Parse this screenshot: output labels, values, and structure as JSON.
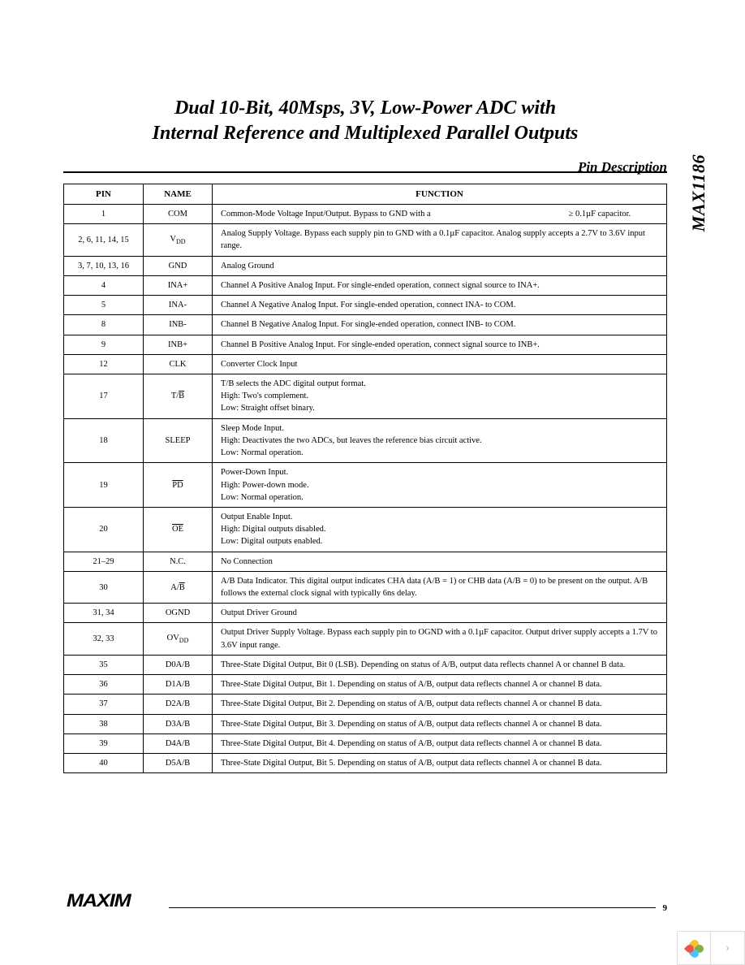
{
  "title_line1": "Dual 10-Bit, 40Msps, 3V, Low-Power ADC with",
  "title_line2": "Internal Reference and Multiplexed Parallel Outputs",
  "side_label": "MAX1186",
  "section_title": "Pin Description",
  "headers": {
    "pin": "PIN",
    "name": "NAME",
    "func": "FUNCTION"
  },
  "logo": "MAXIM",
  "page_number": "9",
  "rows": [
    {
      "pin": "1",
      "name": "COM",
      "func": "Common-Mode Voltage Input/Output. Bypass to GND with a",
      "extra": "≥ 0.1µF capacitor."
    },
    {
      "pin": "2, 6, 11, 14, 15",
      "name_html": "V<span class=\"sub\">DD</span>",
      "func": "Analog Supply Voltage. Bypass each supply pin to GND with a 0.1µF capacitor. Analog supply accepts a 2.7V to 3.6V input range."
    },
    {
      "pin": "3, 7, 10, 13, 16",
      "name": "GND",
      "func": "Analog Ground"
    },
    {
      "pin": "4",
      "name": "INA+",
      "func": "Channel A Positive Analog Input. For single-ended operation, connect signal source to INA+."
    },
    {
      "pin": "5",
      "name": "INA-",
      "func": "Channel A Negative Analog Input. For single-ended operation, connect INA- to COM."
    },
    {
      "pin": "8",
      "name": "INB-",
      "func": "Channel B Negative Analog Input. For single-ended operation, connect INB- to COM."
    },
    {
      "pin": "9",
      "name": "INB+",
      "func": "Channel B Positive Analog Input. For single-ended operation, connect signal source to INB+."
    },
    {
      "pin": "12",
      "name": "CLK",
      "func": "Converter Clock Input"
    },
    {
      "pin": "17",
      "name_html": "T/<span class=\"ov\">B</span>",
      "func": "T/B selects the ADC digital output format.<br>High: Two's complement.<br>Low: Straight offset binary."
    },
    {
      "pin": "18",
      "name": "SLEEP",
      "func": "Sleep Mode Input.<br>High: Deactivates the two ADCs, but leaves the reference bias circuit active.<br>Low: Normal operation."
    },
    {
      "pin": "19",
      "name_html": "<span class=\"ov\">PD</span>",
      "func": "Power-Down Input.<br>High: Power-down mode.<br>Low: Normal operation."
    },
    {
      "pin": "20",
      "name_html": "<span class=\"ov\">OE</span>",
      "func": "Output Enable Input.<br>High: Digital outputs disabled.<br>Low: Digital outputs enabled."
    },
    {
      "pin": "21–29",
      "name": "N.C.",
      "func": "No Connection"
    },
    {
      "pin": "30",
      "name_html": "A/<span class=\"ov\">B</span>",
      "func": "A/B Data Indicator. This digital output indicates CHA data (A/B = 1) or CHB data (A/B = 0) to be present on the output. A/B follows the external clock signal with typically 6ns delay."
    },
    {
      "pin": "31, 34",
      "name": "OGND",
      "func": "Output Driver Ground"
    },
    {
      "pin": "32, 33",
      "name_html": "OV<span class=\"sub\">DD</span>",
      "func": "Output Driver Supply Voltage. Bypass each supply pin to OGND with a 0.1µF capacitor. Output driver supply accepts a 1.7V to 3.6V input range."
    },
    {
      "pin": "35",
      "name": "D0A/B",
      "func": "Three-State Digital Output, Bit 0 (LSB). Depending on status of A/B, output data reflects channel A or channel B data."
    },
    {
      "pin": "36",
      "name": "D1A/B",
      "func": "Three-State Digital Output, Bit 1. Depending on status of A/B, output data reflects channel A or channel B data."
    },
    {
      "pin": "37",
      "name": "D2A/B",
      "func": "Three-State Digital Output, Bit 2. Depending on status of A/B, output data reflects channel A or channel B data."
    },
    {
      "pin": "38",
      "name": "D3A/B",
      "func": "Three-State Digital Output, Bit 3. Depending on status of A/B, output data reflects channel A or channel B data."
    },
    {
      "pin": "39",
      "name": "D4A/B",
      "func": "Three-State Digital Output, Bit 4. Depending on status of A/B, output data reflects channel A or channel B data."
    },
    {
      "pin": "40",
      "name": "D5A/B",
      "func": "Three-State Digital Output, Bit 5. Depending on status of A/B, output data reflects channel A or channel B data."
    }
  ],
  "corner_colors": {
    "y": "#f4c430",
    "g": "#7cb342",
    "b": "#4fc3f7",
    "r": "#ef5350"
  }
}
